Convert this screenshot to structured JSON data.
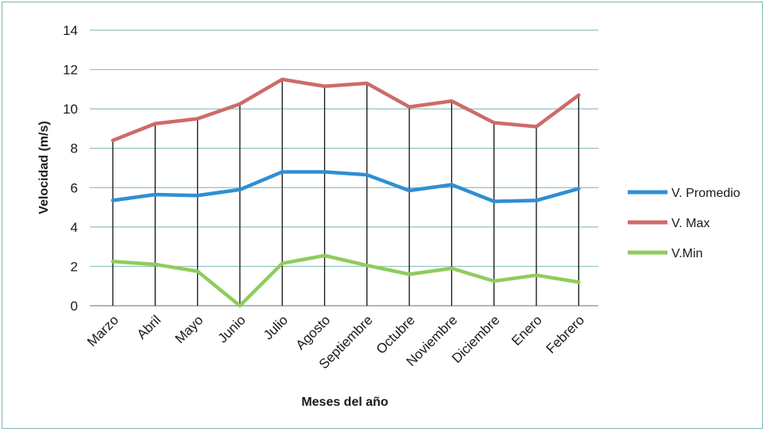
{
  "chart_data": {
    "type": "line",
    "title": "",
    "xlabel": "Meses del año",
    "ylabel": "Velocidad (m/s)",
    "ylim": [
      0,
      14
    ],
    "yticks": [
      0,
      2,
      4,
      6,
      8,
      10,
      12,
      14
    ],
    "grid": true,
    "legend_position": "right",
    "categories": [
      "Marzo",
      "Abril",
      "Mayo",
      "Junio",
      "Julio",
      "Agosto",
      "Septiembre",
      "Octubre",
      "Noviembre",
      "Diciembre",
      "Enero",
      "Febrero"
    ],
    "series": [
      {
        "name": "V. Promedio",
        "color": "#2e8fd4",
        "values": [
          5.35,
          5.65,
          5.6,
          5.9,
          6.8,
          6.8,
          6.65,
          5.85,
          6.15,
          5.3,
          5.35,
          5.95
        ]
      },
      {
        "name": "V. Max",
        "color": "#cd6b68",
        "values": [
          8.4,
          9.25,
          9.5,
          10.25,
          11.5,
          11.15,
          11.3,
          10.1,
          10.4,
          9.3,
          9.1,
          10.7
        ]
      },
      {
        "name": "V.Min",
        "color": "#8fcc5c",
        "values": [
          2.25,
          2.1,
          1.75,
          0.0,
          2.15,
          2.55,
          2.05,
          1.6,
          1.9,
          1.25,
          1.55,
          1.2
        ]
      }
    ]
  }
}
